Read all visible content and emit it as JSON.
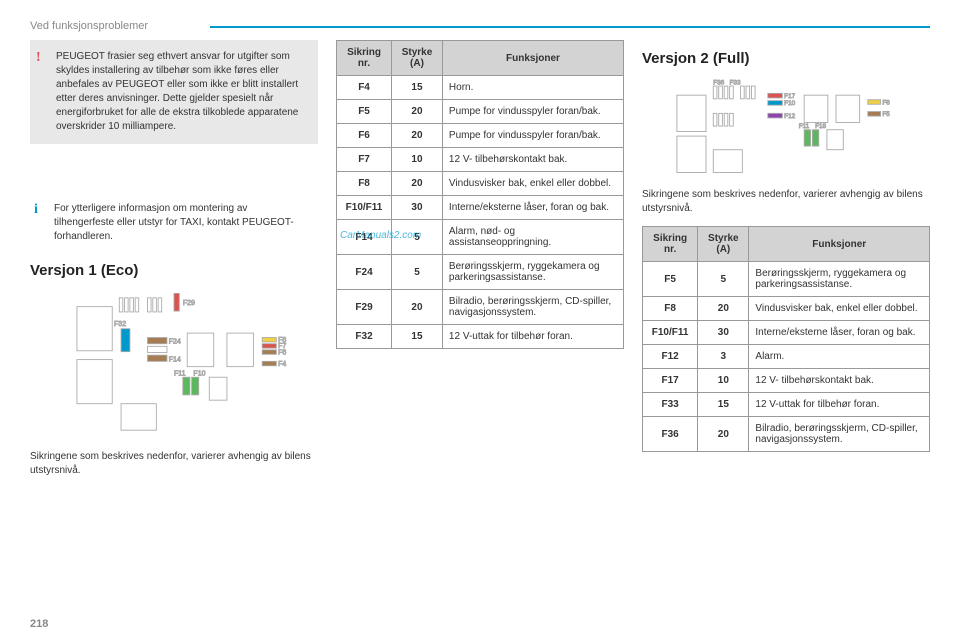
{
  "header": "Ved funksjonsproblemer",
  "page_number": "218",
  "watermark": "CarManuals2.com",
  "warning_text": "PEUGEOT frasier seg ethvert ansvar for utgifter som skyldes installering av tilbehør som ikke føres eller anbefales av PEUGEOT eller som ikke er blitt installert etter deres anvisninger. Dette gjelder spesielt når energiforbruket for alle de ekstra tilkoblede apparatene overskrider 10 milliampere.",
  "info_text": "For ytterligere informasjon om montering av tilhengerfeste eller utstyr for TAXI, kontakt PEUGEOT-forhandleren.",
  "v1_title": "Versjon 1 (Eco)",
  "v2_title": "Versjon 2 (Full)",
  "v1_desc": "Sikringene som beskrives nedenfor, varierer avhengig av bilens utstyrsnivå.",
  "v2_desc": "Sikringene som beskrives nedenfor, varierer avhengig av bilens utstyrsnivå.",
  "table_headers": {
    "nr": "Sikring nr.",
    "a": "Styrke (A)",
    "fn": "Funksjoner"
  },
  "v1_rows": [
    {
      "nr": "F4",
      "a": "15",
      "fn": "Horn."
    },
    {
      "nr": "F5",
      "a": "20",
      "fn": "Pumpe for vindusspyler foran/bak."
    },
    {
      "nr": "F6",
      "a": "20",
      "fn": "Pumpe for vindusspyler foran/bak."
    },
    {
      "nr": "F7",
      "a": "10",
      "fn": "12 V- tilbehørskontakt bak."
    },
    {
      "nr": "F8",
      "a": "20",
      "fn": "Vindusvisker bak, enkel eller dobbel."
    },
    {
      "nr": "F10/F11",
      "a": "30",
      "fn": "Interne/eksterne låser, foran og bak."
    },
    {
      "nr": "F14",
      "a": "5",
      "fn": "Alarm, nød- og assistanseoppringning."
    },
    {
      "nr": "F24",
      "a": "5",
      "fn": "Berøringsskjerm, ryggekamera og parkeringsassistanse."
    },
    {
      "nr": "F29",
      "a": "20",
      "fn": "Bilradio, berøringsskjerm, CD-spiller, navigasjonssystem."
    },
    {
      "nr": "F32",
      "a": "15",
      "fn": "12 V-uttak for tilbehør foran."
    }
  ],
  "v2_rows": [
    {
      "nr": "F5",
      "a": "5",
      "fn": "Berøringsskjerm, ryggekamera og parkeringsassistanse."
    },
    {
      "nr": "F8",
      "a": "20",
      "fn": "Vindusvisker bak, enkel eller dobbel."
    },
    {
      "nr": "F10/F11",
      "a": "30",
      "fn": "Interne/eksterne låser, foran og bak."
    },
    {
      "nr": "F12",
      "a": "3",
      "fn": "Alarm."
    },
    {
      "nr": "F17",
      "a": "10",
      "fn": "12 V- tilbehørskontakt bak."
    },
    {
      "nr": "F33",
      "a": "15",
      "fn": "12 V-uttak for tilbehør foran."
    },
    {
      "nr": "F36",
      "a": "20",
      "fn": "Bilradio, berøringsskjerm, CD-spiller, navigasjonssystem."
    }
  ],
  "diagram1": {
    "labels": [
      "F29",
      "F32",
      "F24",
      "F14",
      "F8",
      "F7",
      "F6",
      "F4",
      "F11",
      "F10"
    ],
    "colors": {
      "F29": "#d9534f",
      "F32": "#0099cc",
      "F24": "#a67c52",
      "F14": "#a67c52",
      "F8": "#f0d040",
      "F7": "#d9534f",
      "F6": "#a67c52",
      "F4": "#a67c52",
      "F11": "#5cb85c",
      "F10": "#5cb85c"
    }
  },
  "diagram2": {
    "labels": [
      "F36",
      "F33",
      "F17",
      "F10",
      "F12",
      "F8",
      "F5",
      "F11",
      "F18"
    ],
    "colors": {
      "F17": "#d9534f",
      "F33": "#0099cc",
      "F12": "#8e44ad",
      "F8": "#f0d040",
      "F5": "#a67c52",
      "F11": "#5cb85c",
      "F18": "#5cb85c",
      "F36": "#888",
      "F10": "#888"
    }
  }
}
